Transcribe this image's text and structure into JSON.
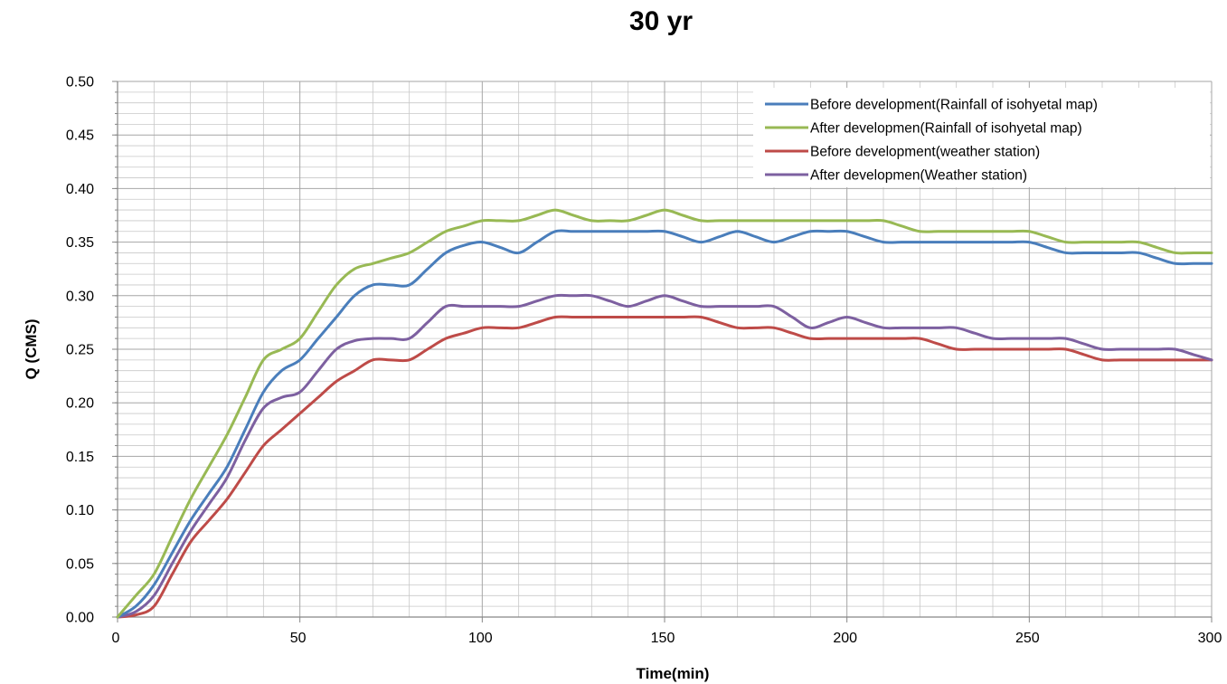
{
  "chart_data": {
    "type": "line",
    "title": "30 yr",
    "xlabel": "Time(min)",
    "ylabel": "Q (CMS)",
    "xlim": [
      0,
      300
    ],
    "ylim": [
      0,
      0.5
    ],
    "x_ticks": [
      "0",
      "50",
      "100",
      "150",
      "200",
      "250",
      "300"
    ],
    "y_ticks": [
      "0.00",
      "0.05",
      "0.10",
      "0.15",
      "0.20",
      "0.25",
      "0.30",
      "0.35",
      "0.40",
      "0.45",
      "0.50"
    ],
    "grid": true,
    "legend_position": "top-right",
    "series": [
      {
        "name": "Before development(Rainfall of isohyetal map)",
        "color": "#4a7ebb",
        "x": [
          0,
          5,
          10,
          15,
          20,
          25,
          30,
          35,
          40,
          45,
          50,
          55,
          60,
          65,
          70,
          75,
          80,
          85,
          90,
          95,
          100,
          105,
          110,
          115,
          120,
          125,
          130,
          135,
          140,
          145,
          150,
          155,
          160,
          165,
          170,
          175,
          180,
          185,
          190,
          195,
          200,
          205,
          210,
          215,
          220,
          225,
          230,
          235,
          240,
          245,
          250,
          255,
          260,
          265,
          270,
          275,
          280,
          285,
          290,
          295,
          300
        ],
        "y": [
          0.0,
          0.01,
          0.03,
          0.06,
          0.09,
          0.115,
          0.14,
          0.175,
          0.21,
          0.23,
          0.24,
          0.26,
          0.28,
          0.3,
          0.31,
          0.31,
          0.31,
          0.325,
          0.34,
          0.347,
          0.35,
          0.345,
          0.34,
          0.35,
          0.36,
          0.36,
          0.36,
          0.36,
          0.36,
          0.36,
          0.36,
          0.355,
          0.35,
          0.355,
          0.36,
          0.355,
          0.35,
          0.355,
          0.36,
          0.36,
          0.36,
          0.355,
          0.35,
          0.35,
          0.35,
          0.35,
          0.35,
          0.35,
          0.35,
          0.35,
          0.35,
          0.345,
          0.34,
          0.34,
          0.34,
          0.34,
          0.34,
          0.335,
          0.33,
          0.33,
          0.33
        ]
      },
      {
        "name": "After developmen(Rainfall of isohyetal map)",
        "color": "#98b954",
        "x": [
          0,
          5,
          10,
          15,
          20,
          25,
          30,
          35,
          40,
          45,
          50,
          55,
          60,
          65,
          70,
          75,
          80,
          85,
          90,
          95,
          100,
          105,
          110,
          115,
          120,
          125,
          130,
          135,
          140,
          145,
          150,
          155,
          160,
          165,
          170,
          175,
          180,
          185,
          190,
          195,
          200,
          205,
          210,
          215,
          220,
          225,
          230,
          235,
          240,
          245,
          250,
          255,
          260,
          265,
          270,
          275,
          280,
          285,
          290,
          295,
          300
        ],
        "y": [
          0.0,
          0.02,
          0.04,
          0.075,
          0.11,
          0.14,
          0.17,
          0.205,
          0.24,
          0.25,
          0.26,
          0.285,
          0.31,
          0.325,
          0.33,
          0.335,
          0.34,
          0.35,
          0.36,
          0.365,
          0.37,
          0.37,
          0.37,
          0.375,
          0.38,
          0.375,
          0.37,
          0.37,
          0.37,
          0.375,
          0.38,
          0.375,
          0.37,
          0.37,
          0.37,
          0.37,
          0.37,
          0.37,
          0.37,
          0.37,
          0.37,
          0.37,
          0.37,
          0.365,
          0.36,
          0.36,
          0.36,
          0.36,
          0.36,
          0.36,
          0.36,
          0.355,
          0.35,
          0.35,
          0.35,
          0.35,
          0.35,
          0.345,
          0.34,
          0.34,
          0.34
        ]
      },
      {
        "name": "Before development(weather station)",
        "color": "#be4b48",
        "x": [
          0,
          5,
          10,
          15,
          20,
          25,
          30,
          35,
          40,
          45,
          50,
          55,
          60,
          65,
          70,
          75,
          80,
          85,
          90,
          95,
          100,
          105,
          110,
          115,
          120,
          125,
          130,
          135,
          140,
          145,
          150,
          155,
          160,
          165,
          170,
          175,
          180,
          185,
          190,
          195,
          200,
          205,
          210,
          215,
          220,
          225,
          230,
          235,
          240,
          245,
          250,
          255,
          260,
          265,
          270,
          275,
          280,
          285,
          290,
          295,
          300
        ],
        "y": [
          0.0,
          0.002,
          0.01,
          0.04,
          0.07,
          0.09,
          0.11,
          0.135,
          0.16,
          0.175,
          0.19,
          0.205,
          0.22,
          0.23,
          0.24,
          0.24,
          0.24,
          0.25,
          0.26,
          0.265,
          0.27,
          0.27,
          0.27,
          0.275,
          0.28,
          0.28,
          0.28,
          0.28,
          0.28,
          0.28,
          0.28,
          0.28,
          0.28,
          0.275,
          0.27,
          0.27,
          0.27,
          0.265,
          0.26,
          0.26,
          0.26,
          0.26,
          0.26,
          0.26,
          0.26,
          0.255,
          0.25,
          0.25,
          0.25,
          0.25,
          0.25,
          0.25,
          0.25,
          0.245,
          0.24,
          0.24,
          0.24,
          0.24,
          0.24,
          0.24,
          0.24
        ]
      },
      {
        "name": "After developmen(Weather station)",
        "color": "#7d60a0",
        "x": [
          0,
          5,
          10,
          15,
          20,
          25,
          30,
          35,
          40,
          45,
          50,
          55,
          60,
          65,
          70,
          75,
          80,
          85,
          90,
          95,
          100,
          105,
          110,
          115,
          120,
          125,
          130,
          135,
          140,
          145,
          150,
          155,
          160,
          165,
          170,
          175,
          180,
          185,
          190,
          195,
          200,
          205,
          210,
          215,
          220,
          225,
          230,
          235,
          240,
          245,
          250,
          255,
          260,
          265,
          270,
          275,
          280,
          285,
          290,
          295,
          300
        ],
        "y": [
          0.0,
          0.005,
          0.02,
          0.05,
          0.08,
          0.105,
          0.13,
          0.165,
          0.195,
          0.205,
          0.21,
          0.23,
          0.25,
          0.258,
          0.26,
          0.26,
          0.26,
          0.275,
          0.29,
          0.29,
          0.29,
          0.29,
          0.29,
          0.295,
          0.3,
          0.3,
          0.3,
          0.295,
          0.29,
          0.295,
          0.3,
          0.295,
          0.29,
          0.29,
          0.29,
          0.29,
          0.29,
          0.28,
          0.27,
          0.275,
          0.28,
          0.275,
          0.27,
          0.27,
          0.27,
          0.27,
          0.27,
          0.265,
          0.26,
          0.26,
          0.26,
          0.26,
          0.26,
          0.255,
          0.25,
          0.25,
          0.25,
          0.25,
          0.25,
          0.245,
          0.24
        ]
      }
    ]
  },
  "colors": {
    "background": "#ffffff",
    "grid": "#c8c8c8",
    "gridMajor": "#a6a6a6",
    "axis": "#868686"
  }
}
